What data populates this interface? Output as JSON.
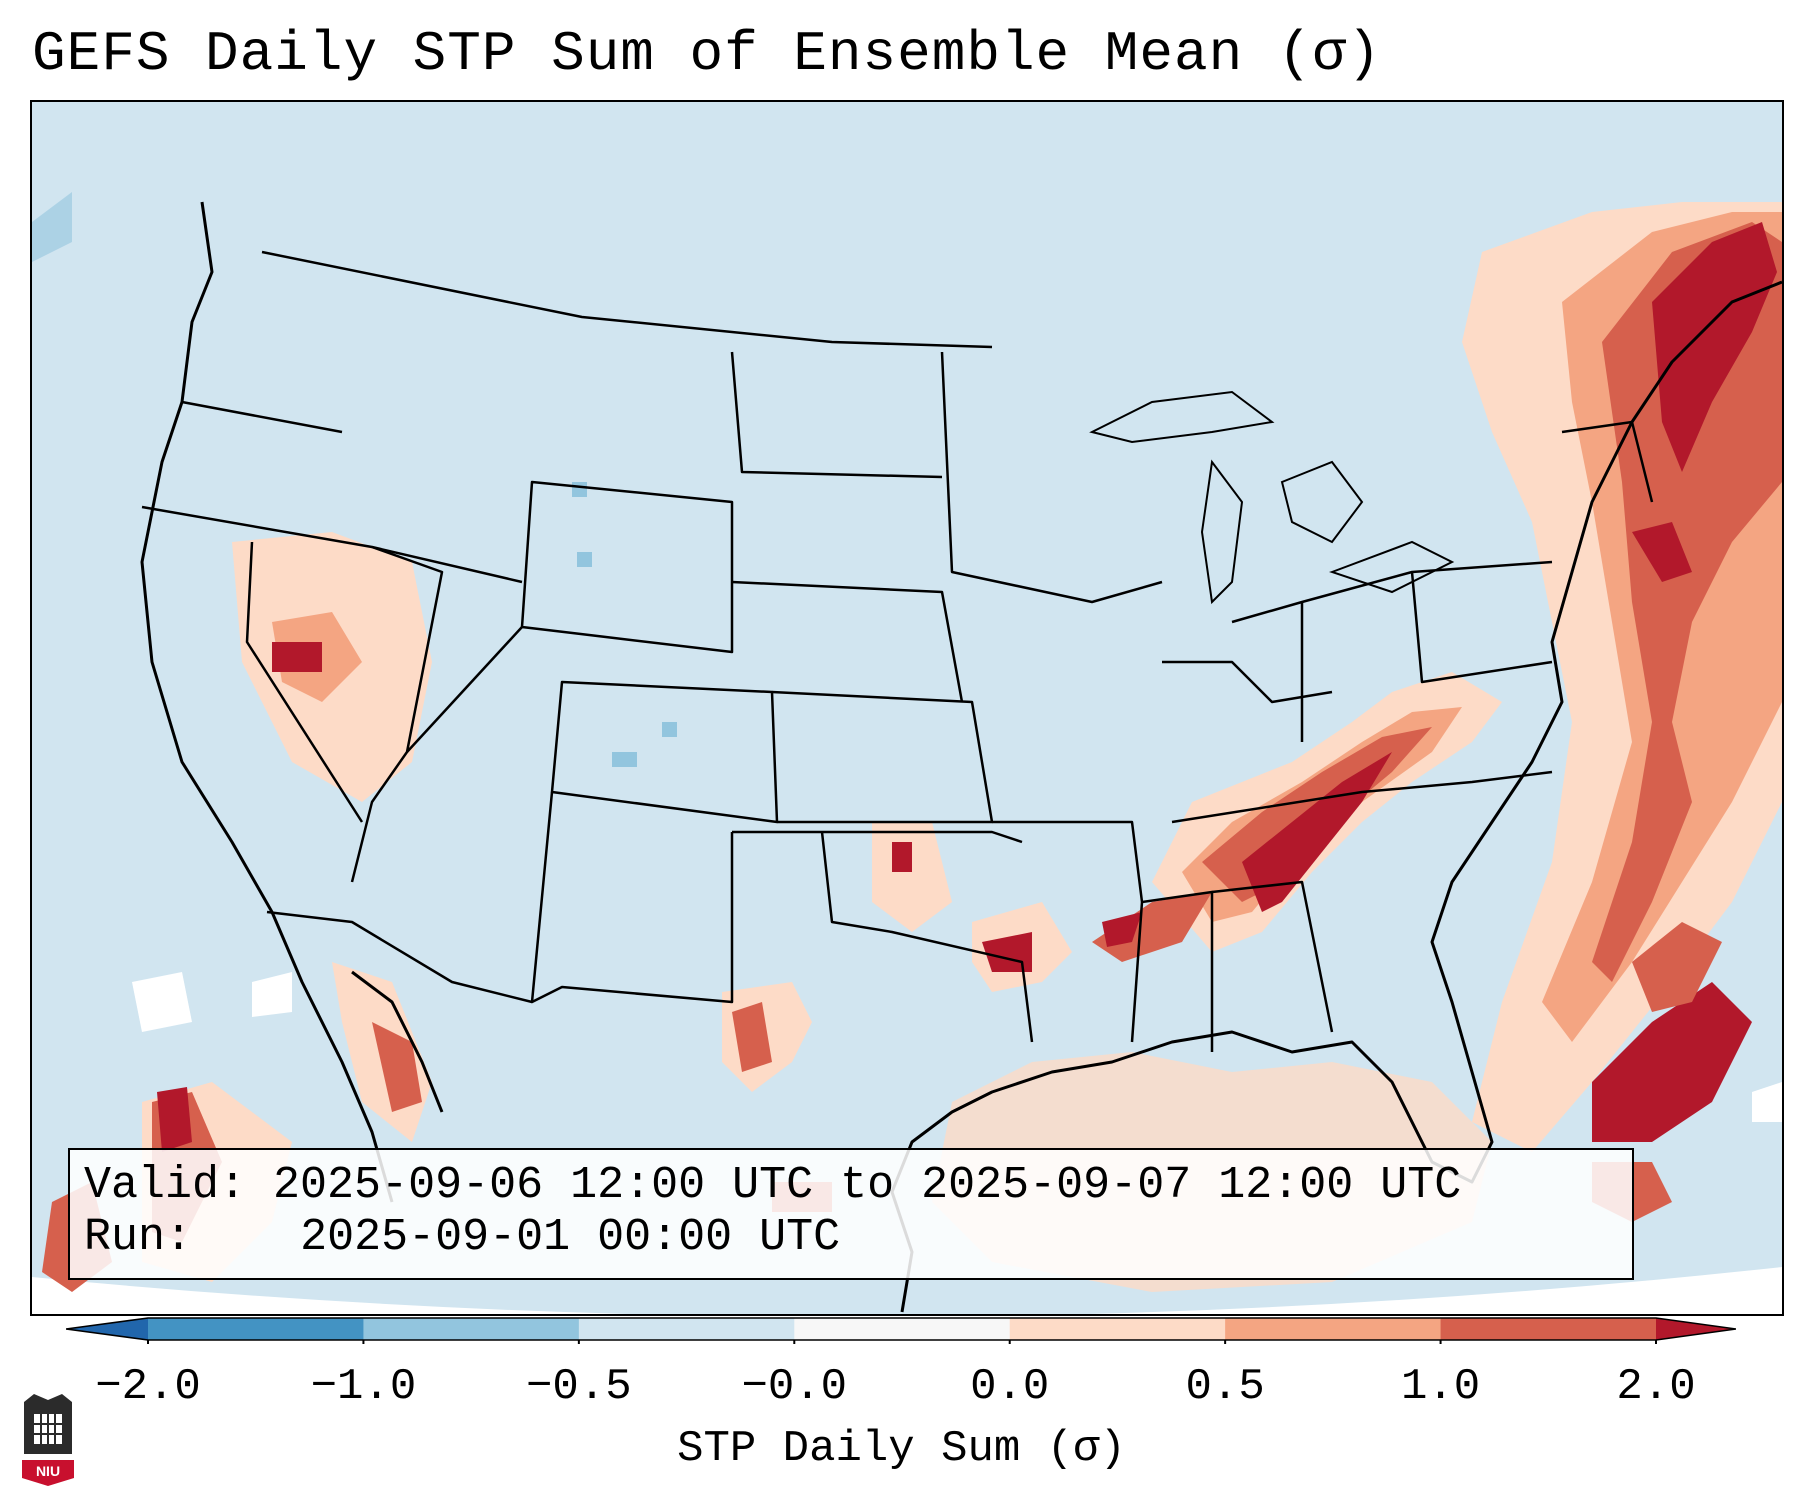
{
  "title": "GEFS Daily STP Sum of Ensemble Mean (σ)",
  "info": {
    "valid_label": "Valid:",
    "valid_value": "2025-09-06 12:00 UTC to 2025-09-07 12:00 UTC",
    "run_label": "Run:",
    "run_value": "2025-09-01 00:00 UTC"
  },
  "colorbar": {
    "label": "STP Daily Sum (σ)",
    "ticks": [
      "−2.0",
      "−1.0",
      "−0.5",
      "−0.0",
      "0.0",
      "0.5",
      "1.0",
      "2.0"
    ],
    "segments": [
      {
        "range": "−2.0 to −1.0",
        "color": "#4393c3"
      },
      {
        "range": "−1.0 to −0.5",
        "color": "#92c5de"
      },
      {
        "range": "−0.5 to −0.0",
        "color": "#d1e5f0"
      },
      {
        "range": "−0.0 to 0.0",
        "color": "#f7f7f7"
      },
      {
        "range": "0.0 to 0.5",
        "color": "#fddbc7"
      },
      {
        "range": "0.5 to 1.0",
        "color": "#f4a582"
      },
      {
        "range": "1.0 to 2.0",
        "color": "#d6604d"
      }
    ],
    "under_color": "#2166ac",
    "over_color": "#b2182b"
  },
  "logo": {
    "text": "NIU"
  }
}
